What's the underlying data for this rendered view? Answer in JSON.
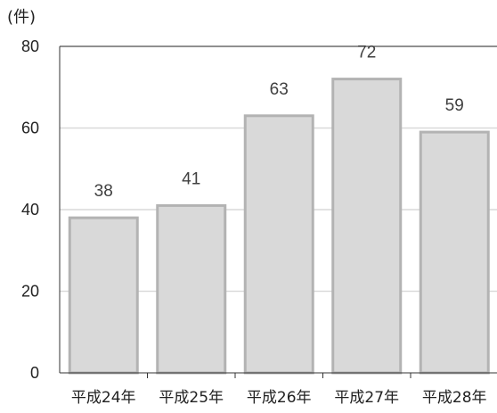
{
  "chart_data": {
    "type": "bar",
    "unit_label": "(件)",
    "categories": [
      "平成24年",
      "平成25年",
      "平成26年",
      "平成27年",
      "平成28年"
    ],
    "values": [
      38,
      41,
      63,
      72,
      59
    ],
    "data_labels": [
      "38",
      "41",
      "63",
      "72",
      "59"
    ],
    "ylim": [
      0,
      80
    ],
    "yticks": [
      0,
      20,
      40,
      60,
      80
    ],
    "ytick_labels": [
      "0",
      "20",
      "40",
      "60",
      "80"
    ],
    "grid": true,
    "colors": {
      "bar_fill": "#d9d9d9",
      "bar_stroke": "#b3b3b3",
      "grid": "#d9d9d9",
      "axis": "#333333"
    }
  }
}
